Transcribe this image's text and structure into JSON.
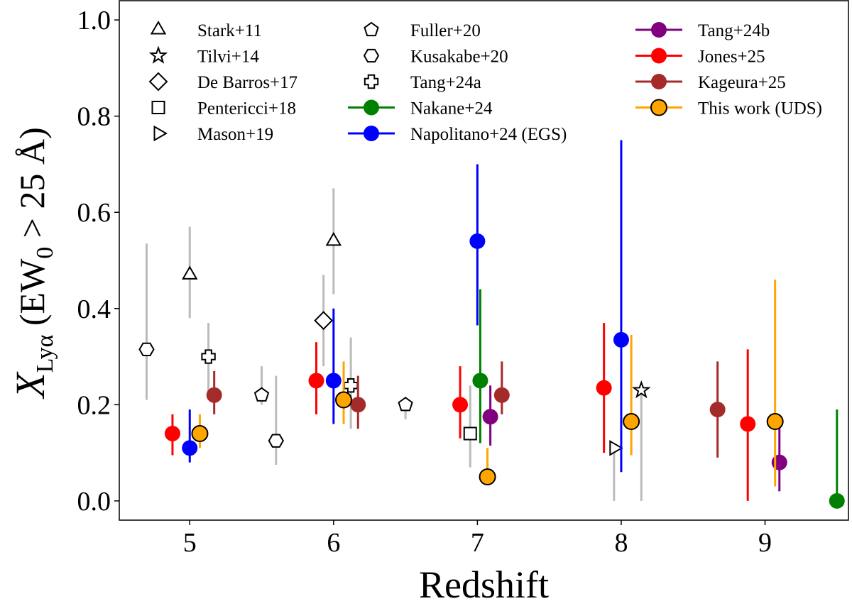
{
  "chart_data": {
    "type": "scatter",
    "xlabel": "Redshift",
    "ylabel_parts": {
      "chi": "X",
      "sub": "Lyα",
      "open": " (EW",
      "sub0": "0",
      "rest": " > 25 Å)"
    },
    "xlim": [
      4.51,
      9.58
    ],
    "ylim": [
      -0.04,
      1.04
    ],
    "xticks": [
      "5",
      "6",
      "7",
      "8",
      "9"
    ],
    "yticks": [
      "0.0",
      "0.2",
      "0.4",
      "0.6",
      "0.8",
      "1.0"
    ],
    "grid": false,
    "legend_placement": "top",
    "series": [
      {
        "name": "Stark+11",
        "marker": "triangle-up",
        "color": "#000000",
        "filled": false,
        "errcolor": "#bbbbbb",
        "points": [
          {
            "x": 5.0,
            "y": 0.47,
            "lo": 0.38,
            "hi": 0.57
          },
          {
            "x": 6.0,
            "y": 0.54,
            "lo": 0.43,
            "hi": 0.65
          }
        ]
      },
      {
        "name": "Tilvi+14",
        "marker": "star",
        "color": "#000000",
        "filled": false,
        "errcolor": "#bbbbbb",
        "points": [
          {
            "x": 8.14,
            "y": 0.23,
            "lo": 0.0,
            "hi": 0.23
          }
        ]
      },
      {
        "name": "De Barros+17",
        "marker": "diamond",
        "color": "#000000",
        "filled": false,
        "errcolor": "#bbbbbb",
        "points": [
          {
            "x": 5.93,
            "y": 0.375,
            "lo": 0.28,
            "hi": 0.47
          }
        ]
      },
      {
        "name": "Pentericci+18",
        "marker": "square",
        "color": "#000000",
        "filled": false,
        "errcolor": "#bbbbbb",
        "points": [
          {
            "x": 6.95,
            "y": 0.14,
            "lo": 0.07,
            "hi": 0.24
          }
        ]
      },
      {
        "name": "Mason+19",
        "marker": "triangle-right",
        "color": "#000000",
        "filled": false,
        "errcolor": "#bbbbbb",
        "points": [
          {
            "x": 7.95,
            "y": 0.11,
            "lo": 0.0,
            "hi": 0.11
          }
        ]
      },
      {
        "name": "Fuller+20",
        "marker": "pentagon",
        "color": "#000000",
        "filled": false,
        "errcolor": "#bbbbbb",
        "points": [
          {
            "x": 5.5,
            "y": 0.22,
            "lo": 0.2,
            "hi": 0.28
          },
          {
            "x": 6.5,
            "y": 0.2,
            "lo": 0.17,
            "hi": 0.21
          }
        ]
      },
      {
        "name": "Kusakabe+20",
        "marker": "hexagon",
        "color": "#000000",
        "filled": false,
        "errcolor": "#bbbbbb",
        "points": [
          {
            "x": 4.7,
            "y": 0.315,
            "lo": 0.21,
            "hi": 0.535
          },
          {
            "x": 5.6,
            "y": 0.125,
            "lo": 0.075,
            "hi": 0.26
          }
        ]
      },
      {
        "name": "Tang+24a",
        "marker": "x",
        "color": "#000000",
        "filled": false,
        "errcolor": "#bbbbbb",
        "points": [
          {
            "x": 5.13,
            "y": 0.3,
            "lo": 0.22,
            "hi": 0.37
          },
          {
            "x": 6.12,
            "y": 0.24,
            "lo": 0.15,
            "hi": 0.34
          }
        ]
      },
      {
        "name": "Nakane+24",
        "marker": "circle",
        "color": "#008000",
        "filled": true,
        "errcolor": "#008000",
        "points": [
          {
            "x": 7.02,
            "y": 0.25,
            "lo": 0.12,
            "hi": 0.44
          },
          {
            "x": 9.5,
            "y": 0.0,
            "lo": 0.0,
            "hi": 0.19
          }
        ]
      },
      {
        "name": "Napolitano+24 (EGS)",
        "marker": "circle",
        "color": "#0000ff",
        "filled": true,
        "errcolor": "#0000ff",
        "points": [
          {
            "x": 5.0,
            "y": 0.11,
            "lo": 0.08,
            "hi": 0.19
          },
          {
            "x": 6.0,
            "y": 0.25,
            "lo": 0.16,
            "hi": 0.4
          },
          {
            "x": 7.0,
            "y": 0.54,
            "lo": 0.365,
            "hi": 0.7
          },
          {
            "x": 8.0,
            "y": 0.335,
            "lo": 0.06,
            "hi": 0.75
          }
        ]
      },
      {
        "name": "Tang+24b",
        "marker": "circle",
        "color": "#800080",
        "filled": true,
        "errcolor": "#800080",
        "points": [
          {
            "x": 7.09,
            "y": 0.175,
            "lo": 0.115,
            "hi": 0.24
          },
          {
            "x": 9.1,
            "y": 0.08,
            "lo": 0.02,
            "hi": 0.17
          }
        ]
      },
      {
        "name": "Jones+25",
        "marker": "circle",
        "color": "#ff0000",
        "filled": true,
        "errcolor": "#ff0000",
        "points": [
          {
            "x": 4.88,
            "y": 0.14,
            "lo": 0.095,
            "hi": 0.18
          },
          {
            "x": 5.88,
            "y": 0.25,
            "lo": 0.18,
            "hi": 0.33
          },
          {
            "x": 6.88,
            "y": 0.2,
            "lo": 0.13,
            "hi": 0.28
          },
          {
            "x": 7.88,
            "y": 0.235,
            "lo": 0.1,
            "hi": 0.37
          },
          {
            "x": 8.88,
            "y": 0.16,
            "lo": 0.0,
            "hi": 0.315
          }
        ]
      },
      {
        "name": "Kageura+25",
        "marker": "circle",
        "color": "#a52a2a",
        "filled": true,
        "errcolor": "#a52a2a",
        "points": [
          {
            "x": 5.17,
            "y": 0.22,
            "lo": 0.18,
            "hi": 0.27
          },
          {
            "x": 6.17,
            "y": 0.2,
            "lo": 0.15,
            "hi": 0.26
          },
          {
            "x": 7.17,
            "y": 0.22,
            "lo": 0.18,
            "hi": 0.29
          },
          {
            "x": 8.67,
            "y": 0.19,
            "lo": 0.09,
            "hi": 0.29
          }
        ]
      },
      {
        "name": "This work (UDS)",
        "marker": "circle-edge",
        "color": "#ffa500",
        "filled": true,
        "errcolor": "#ffa500",
        "points": [
          {
            "x": 5.07,
            "y": 0.14,
            "lo": 0.11,
            "hi": 0.18
          },
          {
            "x": 6.07,
            "y": 0.21,
            "lo": 0.16,
            "hi": 0.29
          },
          {
            "x": 7.07,
            "y": 0.05,
            "lo": 0.05,
            "hi": 0.11
          },
          {
            "x": 8.07,
            "y": 0.165,
            "lo": 0.095,
            "hi": 0.345
          },
          {
            "x": 9.07,
            "y": 0.165,
            "lo": 0.03,
            "hi": 0.46
          }
        ]
      }
    ]
  }
}
